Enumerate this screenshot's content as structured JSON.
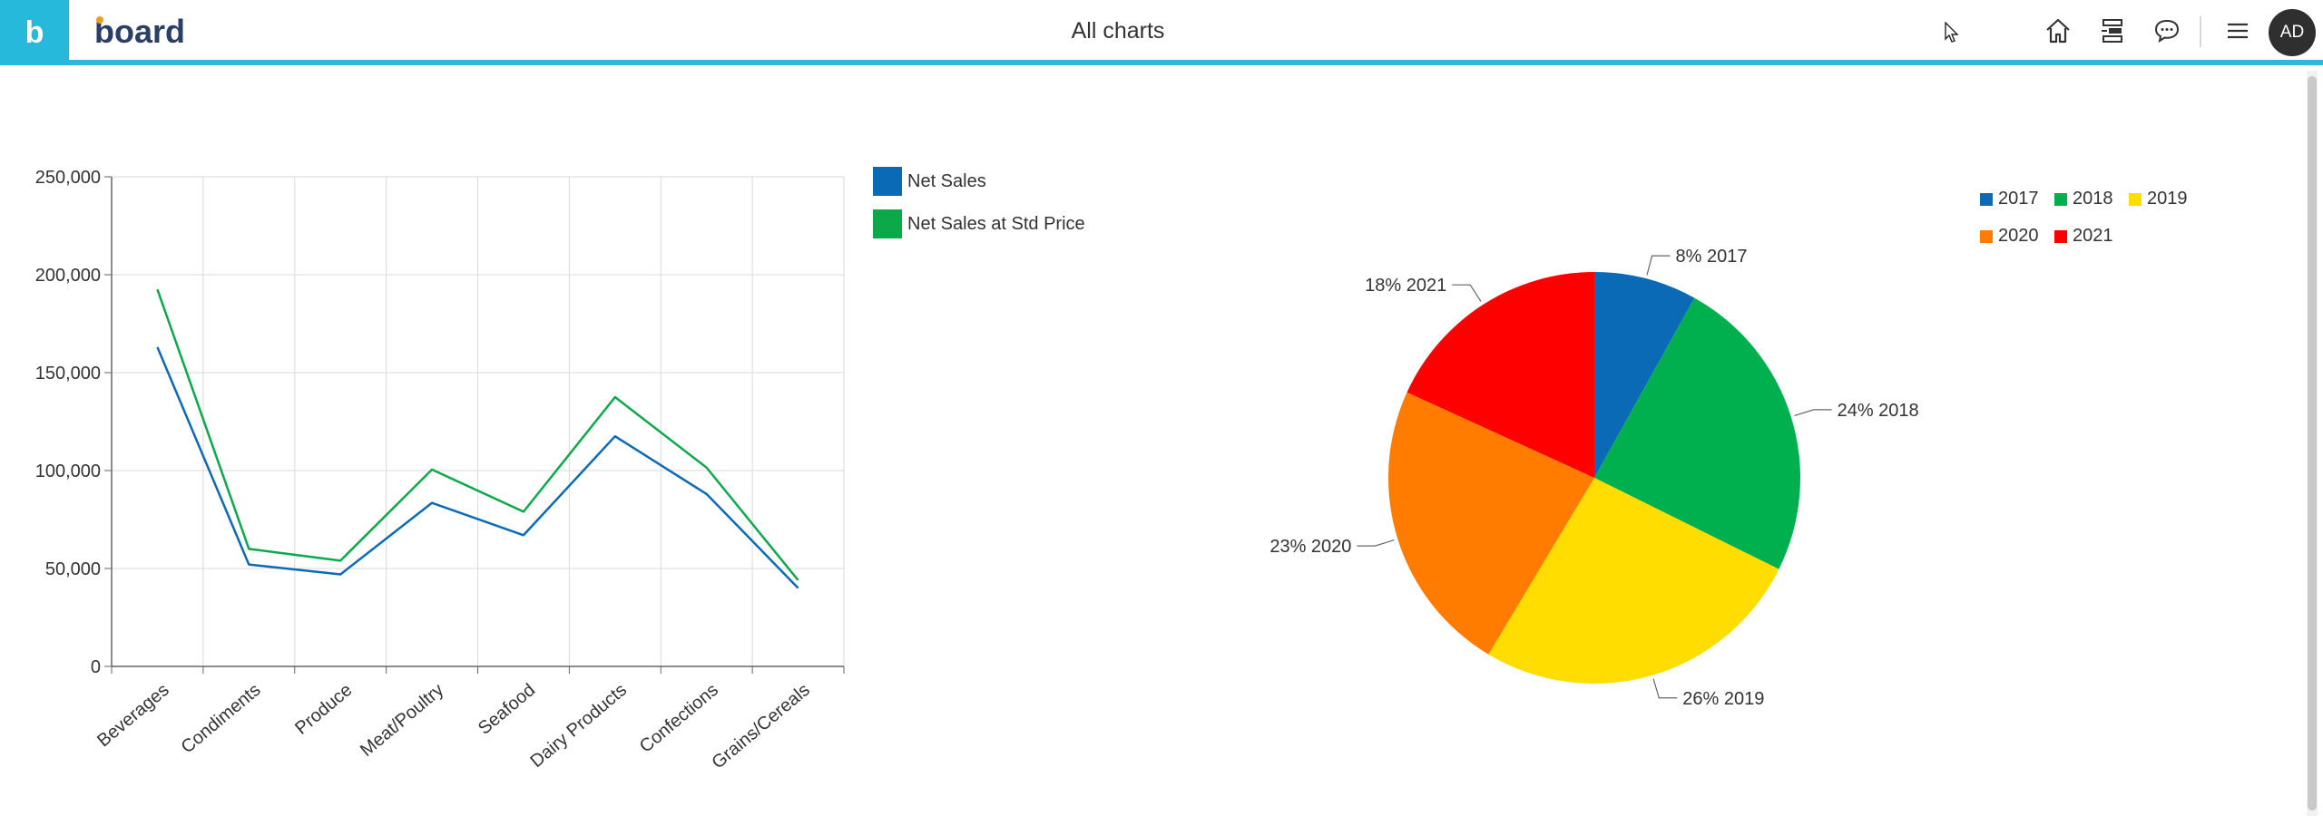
{
  "topbar": {
    "app_tile_glyph": "b",
    "brand": "board",
    "title": "All charts",
    "icons": [
      "home-icon",
      "layout-panel-icon",
      "chat-bubble-icon",
      "hamburger-menu-icon"
    ],
    "avatar_initials": "AD"
  },
  "colors": {
    "accent": "#31b7d8",
    "net_sales": "#0b6ab6",
    "net_sales_std": "#0ca94a",
    "y2017": "#0b6ab6",
    "y2018": "#00b04f",
    "y2019": "#ffdd00",
    "y2020": "#ff7c00",
    "y2021": "#ff0000"
  },
  "chart_data": [
    {
      "type": "line",
      "title": "",
      "xlabel": "",
      "ylabel": "",
      "categories": [
        "Beverages",
        "Condiments",
        "Produce",
        "Meat/Poultry",
        "Seafood",
        "Dairy Products",
        "Confections",
        "Grains/Cereals"
      ],
      "ylim": [
        0,
        250000
      ],
      "yticks": [
        "0",
        "50,000",
        "100,000",
        "150,000",
        "200,000",
        "250,000"
      ],
      "grid": true,
      "legend_position": "right",
      "series": [
        {
          "name": "Net Sales",
          "values": [
            163000,
            52000,
            47000,
            83500,
            67000,
            117500,
            88000,
            40000
          ]
        },
        {
          "name": "Net Sales at Std Price",
          "values": [
            192500,
            60000,
            54000,
            100500,
            79000,
            137500,
            101500,
            44000
          ]
        }
      ]
    },
    {
      "type": "pie",
      "title": "",
      "legend_position": "top-right",
      "legend": [
        "2017",
        "2018",
        "2019",
        "2020",
        "2021"
      ],
      "slices": [
        {
          "label": "2017",
          "value": 8,
          "text": "8% 2017"
        },
        {
          "label": "2018",
          "value": 24,
          "text": "24% 2018"
        },
        {
          "label": "2019",
          "value": 26,
          "text": "26% 2019"
        },
        {
          "label": "2020",
          "value": 23,
          "text": "23% 2020"
        },
        {
          "label": "2021",
          "value": 18,
          "text": "18% 2021"
        }
      ]
    }
  ]
}
